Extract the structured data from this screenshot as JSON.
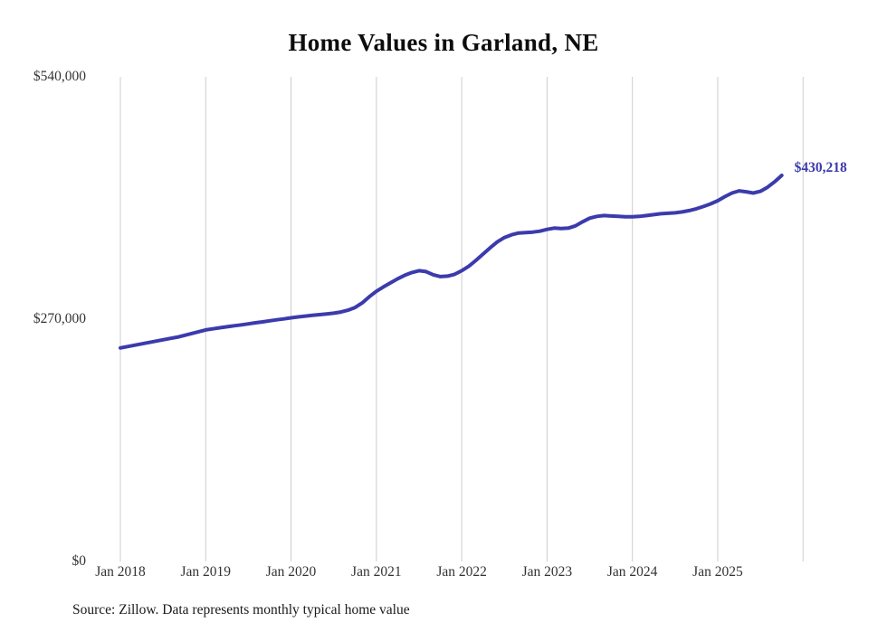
{
  "chart_data": {
    "type": "line",
    "title": "Home Values in Garland, NE",
    "source": "Source: Zillow. Data represents monthly typical home value",
    "end_label": "$430,218",
    "end_value": 430218,
    "ylim": [
      0,
      540000
    ],
    "grid": "vertical-yearly",
    "legend_position": "none",
    "colors": {
      "line": "#3b3bad",
      "end_label": "#3b3bad",
      "gridline": "#cccccc",
      "tick_text": "#333333"
    },
    "y_ticks": [
      {
        "value": 540000,
        "label": "$540,000"
      },
      {
        "value": 270000,
        "label": "$270,000"
      },
      {
        "value": 0,
        "label": "$0"
      }
    ],
    "x_tick_labels": [
      "Jan 2018",
      "Jan 2019",
      "Jan 2020",
      "Jan 2021",
      "Jan 2022",
      "Jan 2023",
      "Jan 2024",
      "Jan 2025"
    ],
    "gridline_count": 9,
    "series": [
      {
        "name": "Typical home value",
        "start_month": "2018-01",
        "end_month": "2025-10",
        "interval": "monthly",
        "values": [
          238000,
          239500,
          241000,
          242500,
          244000,
          245500,
          247000,
          248500,
          250000,
          252000,
          254000,
          256000,
          258000,
          259200,
          260400,
          261500,
          262600,
          263700,
          264800,
          266000,
          267000,
          268200,
          269300,
          270300,
          271500,
          272500,
          273400,
          274200,
          275000,
          275800,
          276600,
          278000,
          280000,
          283000,
          288000,
          295000,
          301000,
          306000,
          310500,
          315000,
          319000,
          322000,
          324000,
          323000,
          319500,
          317500,
          318000,
          320000,
          324000,
          329000,
          335500,
          342500,
          349500,
          356000,
          361000,
          364000,
          366000,
          366500,
          367000,
          368000,
          370000,
          371500,
          371000,
          371500,
          374000,
          378500,
          382500,
          384500,
          385500,
          385000,
          384500,
          384000,
          384000,
          384500,
          385500,
          386500,
          387500,
          388000,
          388500,
          389500,
          391000,
          393000,
          395500,
          398500,
          402000,
          406500,
          410500,
          413000,
          412000,
          410500,
          412500,
          417000,
          423000,
          430218
        ]
      }
    ]
  }
}
